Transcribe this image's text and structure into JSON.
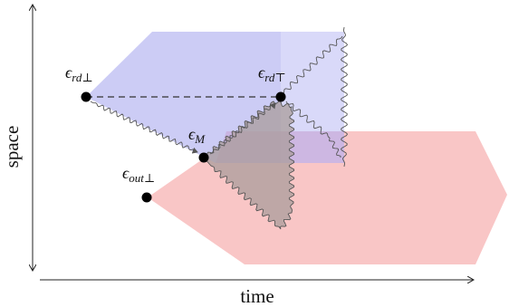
{
  "axes": {
    "x_label": "time",
    "y_label": "space"
  },
  "points": [
    {
      "id": "rd_bot",
      "symbol": "ϵ",
      "sub": "rd⊥"
    },
    {
      "id": "rd_top",
      "symbol": "ϵ",
      "sub": "rd⊤"
    },
    {
      "id": "m",
      "symbol": "ϵ",
      "sub": "M"
    },
    {
      "id": "out_bot",
      "symbol": "ϵ",
      "sub": "out⊥"
    }
  ],
  "colors": {
    "blue_region": "#c9c9f5",
    "red_region": "#f9c6c6",
    "overlap_blue": "#b9a9d6",
    "gray_region": "#b7aaa9",
    "light_right": "#e6e6fa",
    "point": "#000000",
    "wavy": "#666666",
    "dashed": "#333333"
  }
}
